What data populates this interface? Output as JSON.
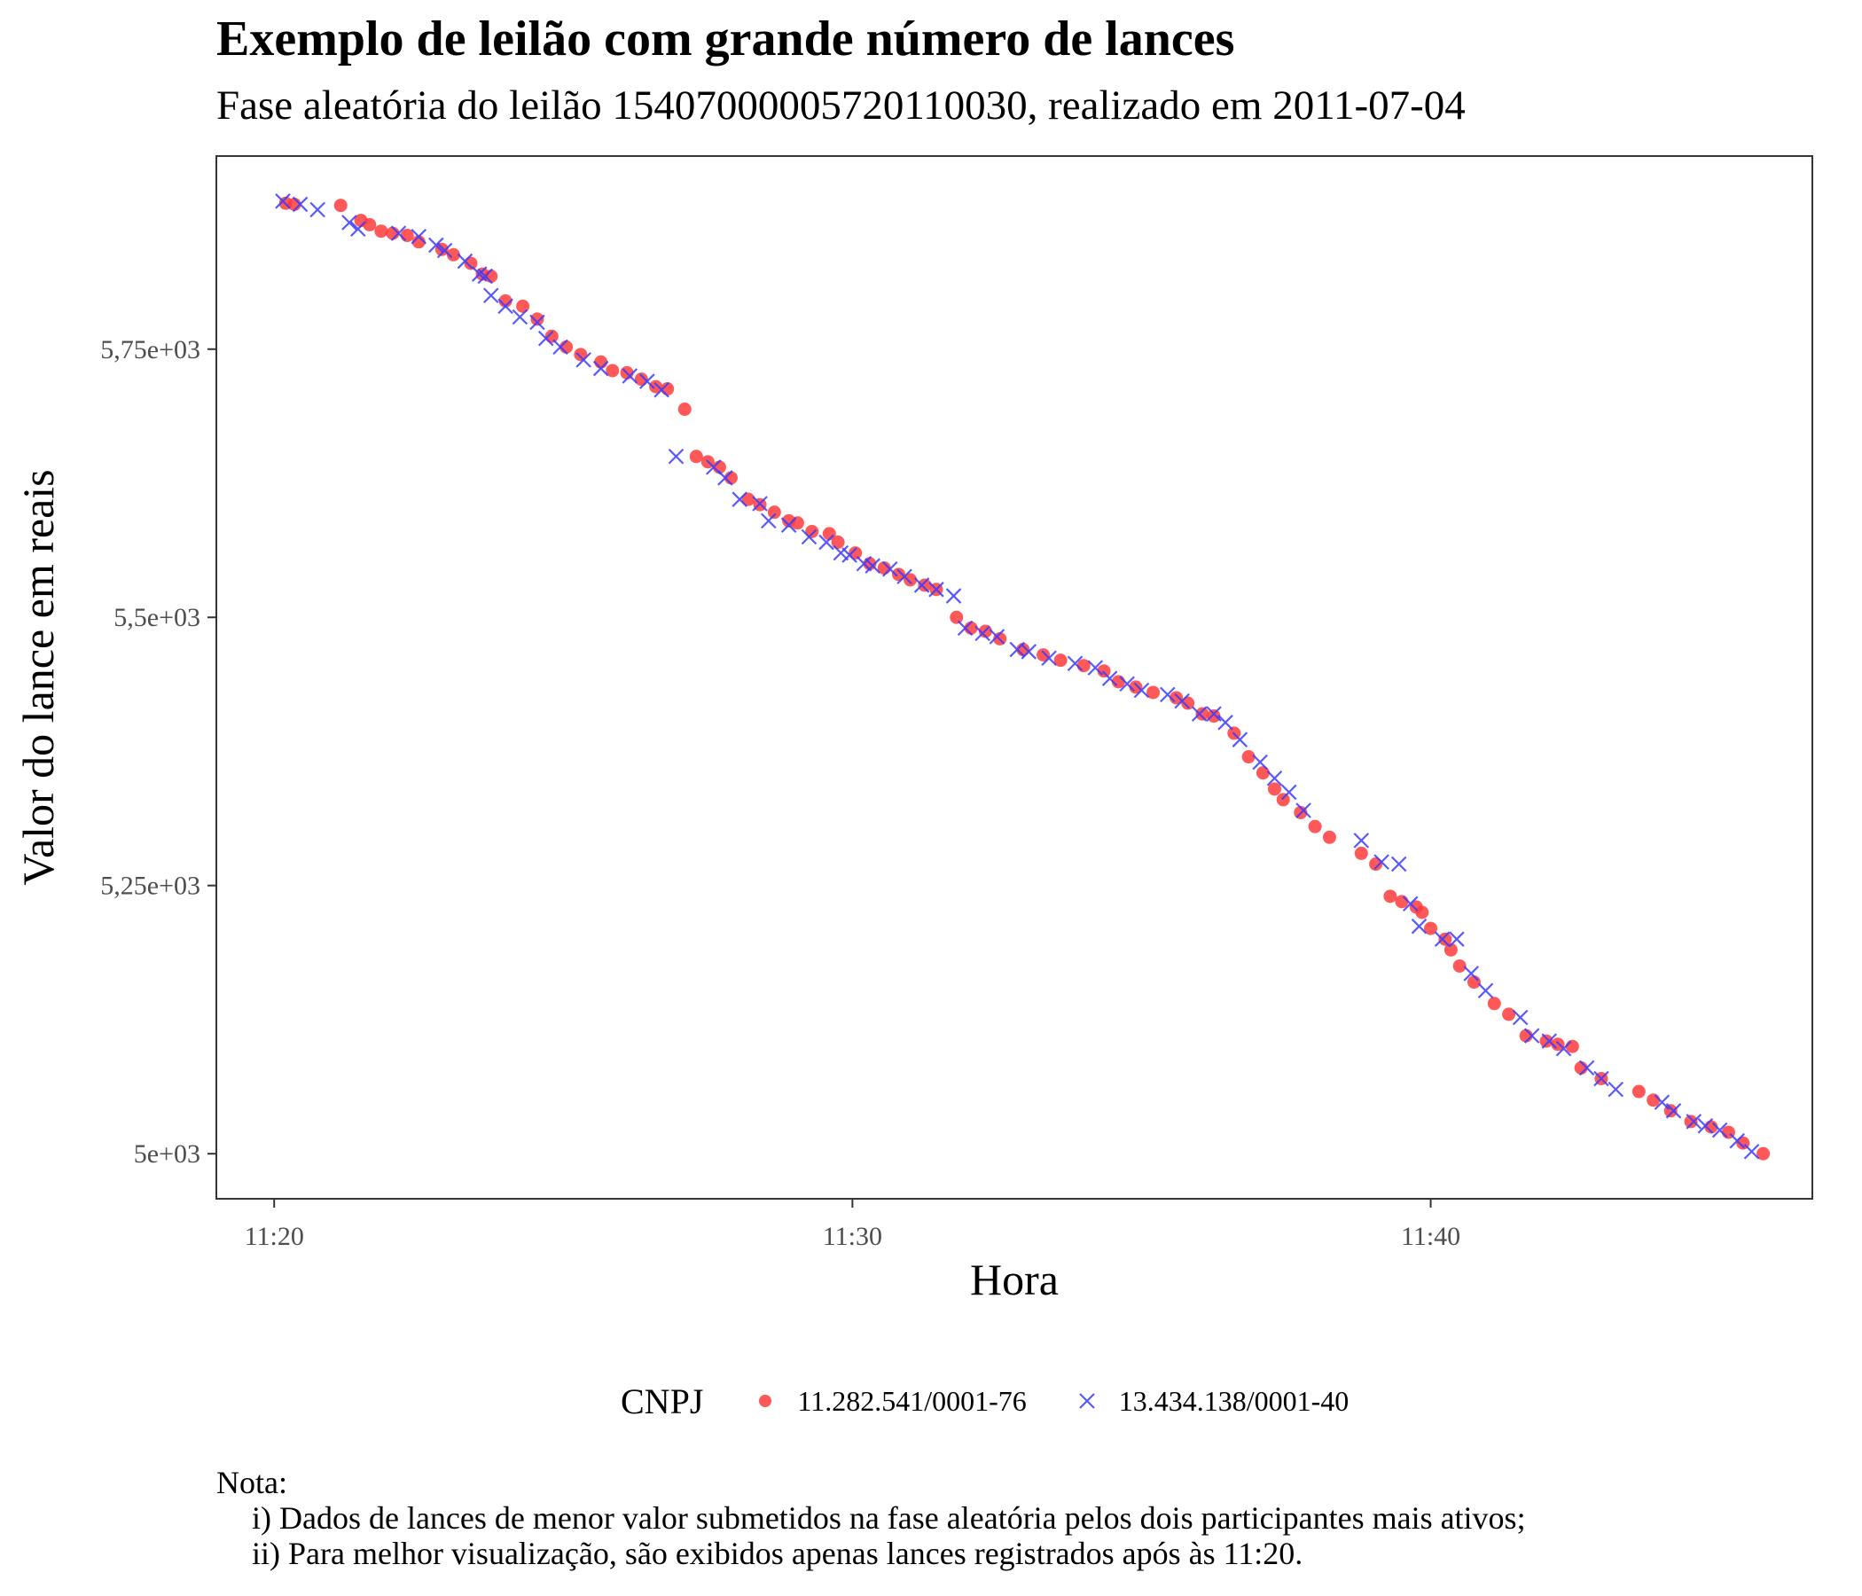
{
  "title": "Exemplo de leilão com grande número de lances",
  "subtitle": "Fase aleatória do leilão 15407000005720110030, realizado em 2011-07-04",
  "legend": {
    "title": "CNPJ",
    "items": [
      {
        "label": "11.282.541/0001-76",
        "shape": "circle",
        "color": "#ff3b3b"
      },
      {
        "label": "13.434.138/0001-40",
        "shape": "cross",
        "color": "#3b3bff"
      }
    ]
  },
  "note": {
    "heading": "Nota:",
    "lines": [
      "i) Dados de lances de menor valor submetidos na fase aleatória pelos dois participantes mais ativos;",
      "ii) Para melhor visualização, são exibidos apenas lances registrados após às 11:20."
    ]
  },
  "chart_data": {
    "type": "scatter",
    "xlabel": "Hora",
    "ylabel": "Valor do lance em reais",
    "x_unit": "minutes after 11:00",
    "xlim": [
      19.0,
      46.6
    ],
    "ylim": [
      4958,
      5930
    ],
    "xticks": [
      {
        "value": 20,
        "label": "11:20"
      },
      {
        "value": 30,
        "label": "11:30"
      },
      {
        "value": 40,
        "label": "11:40"
      }
    ],
    "yticks": [
      {
        "value": 5000,
        "label": "5e+03"
      },
      {
        "value": 5250,
        "label": "5,25e+03"
      },
      {
        "value": 5500,
        "label": "5,5e+03"
      },
      {
        "value": 5750,
        "label": "5,75e+03"
      }
    ],
    "grid": false,
    "legend_position": "bottom",
    "series": [
      {
        "name": "11.282.541/0001-76",
        "marker": "circle",
        "color": "#ff3b3b",
        "points": [
          [
            20.2,
            5886
          ],
          [
            20.35,
            5885
          ],
          [
            21.15,
            5884
          ],
          [
            21.5,
            5870
          ],
          [
            21.65,
            5866
          ],
          [
            21.85,
            5860
          ],
          [
            22.05,
            5858
          ],
          [
            22.3,
            5856
          ],
          [
            22.5,
            5850
          ],
          [
            22.9,
            5843
          ],
          [
            23.1,
            5838
          ],
          [
            23.4,
            5830
          ],
          [
            23.6,
            5820
          ],
          [
            23.75,
            5818
          ],
          [
            24.0,
            5795
          ],
          [
            24.3,
            5790
          ],
          [
            24.55,
            5778
          ],
          [
            24.8,
            5762
          ],
          [
            25.05,
            5752
          ],
          [
            25.3,
            5745
          ],
          [
            25.65,
            5738
          ],
          [
            25.85,
            5730
          ],
          [
            26.1,
            5728
          ],
          [
            26.35,
            5722
          ],
          [
            26.6,
            5715
          ],
          [
            26.8,
            5713
          ],
          [
            27.1,
            5694
          ],
          [
            27.3,
            5650
          ],
          [
            27.5,
            5645
          ],
          [
            27.7,
            5640
          ],
          [
            27.9,
            5630
          ],
          [
            28.2,
            5610
          ],
          [
            28.4,
            5605
          ],
          [
            28.65,
            5598
          ],
          [
            28.9,
            5590
          ],
          [
            29.05,
            5588
          ],
          [
            29.3,
            5580
          ],
          [
            29.6,
            5578
          ],
          [
            29.75,
            5570
          ],
          [
            30.05,
            5560
          ],
          [
            30.3,
            5550
          ],
          [
            30.55,
            5546
          ],
          [
            30.8,
            5540
          ],
          [
            31.0,
            5535
          ],
          [
            31.25,
            5530
          ],
          [
            31.45,
            5526
          ],
          [
            31.8,
            5500
          ],
          [
            32.05,
            5490
          ],
          [
            32.3,
            5487
          ],
          [
            32.55,
            5480
          ],
          [
            32.95,
            5470
          ],
          [
            33.3,
            5465
          ],
          [
            33.6,
            5460
          ],
          [
            34.0,
            5455
          ],
          [
            34.35,
            5450
          ],
          [
            34.6,
            5440
          ],
          [
            34.9,
            5435
          ],
          [
            35.2,
            5430
          ],
          [
            35.6,
            5425
          ],
          [
            35.8,
            5420
          ],
          [
            36.05,
            5410
          ],
          [
            36.25,
            5408
          ],
          [
            36.6,
            5392
          ],
          [
            36.85,
            5370
          ],
          [
            37.1,
            5355
          ],
          [
            37.3,
            5340
          ],
          [
            37.45,
            5330
          ],
          [
            37.75,
            5318
          ],
          [
            38.0,
            5305
          ],
          [
            38.25,
            5295
          ],
          [
            38.8,
            5280
          ],
          [
            39.05,
            5270
          ],
          [
            39.3,
            5240
          ],
          [
            39.5,
            5235
          ],
          [
            39.75,
            5230
          ],
          [
            39.85,
            5225
          ],
          [
            40.0,
            5210
          ],
          [
            40.25,
            5200
          ],
          [
            40.35,
            5190
          ],
          [
            40.5,
            5175
          ],
          [
            40.75,
            5160
          ],
          [
            41.1,
            5140
          ],
          [
            41.35,
            5130
          ],
          [
            41.65,
            5110
          ],
          [
            42.0,
            5105
          ],
          [
            42.2,
            5102
          ],
          [
            42.45,
            5100
          ],
          [
            42.6,
            5080
          ],
          [
            42.95,
            5070
          ],
          [
            43.6,
            5058
          ],
          [
            43.85,
            5050
          ],
          [
            44.15,
            5040
          ],
          [
            44.5,
            5030
          ],
          [
            44.85,
            5025
          ],
          [
            45.15,
            5020
          ],
          [
            45.4,
            5010
          ],
          [
            45.75,
            5000
          ]
        ]
      },
      {
        "name": "13.434.138/0001-40",
        "marker": "cross",
        "color": "#3b3bff",
        "points": [
          [
            20.15,
            5888
          ],
          [
            20.45,
            5885
          ],
          [
            20.75,
            5880
          ],
          [
            21.3,
            5868
          ],
          [
            21.45,
            5862
          ],
          [
            22.15,
            5858
          ],
          [
            22.5,
            5855
          ],
          [
            22.8,
            5847
          ],
          [
            22.95,
            5842
          ],
          [
            23.3,
            5832
          ],
          [
            23.55,
            5820
          ],
          [
            23.65,
            5818
          ],
          [
            23.75,
            5800
          ],
          [
            24.0,
            5790
          ],
          [
            24.25,
            5780
          ],
          [
            24.55,
            5775
          ],
          [
            24.7,
            5760
          ],
          [
            24.95,
            5752
          ],
          [
            25.35,
            5740
          ],
          [
            25.65,
            5732
          ],
          [
            26.15,
            5725
          ],
          [
            26.45,
            5720
          ],
          [
            26.7,
            5712
          ],
          [
            26.95,
            5650
          ],
          [
            27.6,
            5640
          ],
          [
            27.8,
            5630
          ],
          [
            28.05,
            5610
          ],
          [
            28.4,
            5606
          ],
          [
            28.55,
            5590
          ],
          [
            28.9,
            5586
          ],
          [
            29.25,
            5575
          ],
          [
            29.55,
            5570
          ],
          [
            29.8,
            5560
          ],
          [
            29.95,
            5558
          ],
          [
            30.2,
            5550
          ],
          [
            30.35,
            5548
          ],
          [
            30.65,
            5545
          ],
          [
            30.9,
            5538
          ],
          [
            31.2,
            5530
          ],
          [
            31.45,
            5526
          ],
          [
            31.75,
            5520
          ],
          [
            31.95,
            5490
          ],
          [
            32.25,
            5485
          ],
          [
            32.5,
            5482
          ],
          [
            32.85,
            5470
          ],
          [
            33.05,
            5468
          ],
          [
            33.4,
            5462
          ],
          [
            33.85,
            5457
          ],
          [
            34.2,
            5453
          ],
          [
            34.45,
            5443
          ],
          [
            34.75,
            5438
          ],
          [
            35.0,
            5432
          ],
          [
            35.45,
            5428
          ],
          [
            35.7,
            5422
          ],
          [
            36.0,
            5410
          ],
          [
            36.25,
            5410
          ],
          [
            36.45,
            5402
          ],
          [
            36.7,
            5386
          ],
          [
            37.05,
            5365
          ],
          [
            37.3,
            5350
          ],
          [
            37.55,
            5337
          ],
          [
            37.8,
            5320
          ],
          [
            38.8,
            5292
          ],
          [
            39.15,
            5272
          ],
          [
            39.45,
            5270
          ],
          [
            39.65,
            5233
          ],
          [
            39.8,
            5212
          ],
          [
            40.2,
            5200
          ],
          [
            40.45,
            5200
          ],
          [
            40.7,
            5168
          ],
          [
            40.95,
            5152
          ],
          [
            41.55,
            5127
          ],
          [
            41.75,
            5110
          ],
          [
            42.05,
            5105
          ],
          [
            42.3,
            5098
          ],
          [
            42.7,
            5080
          ],
          [
            42.95,
            5070
          ],
          [
            43.2,
            5060
          ],
          [
            44.0,
            5048
          ],
          [
            44.2,
            5040
          ],
          [
            44.55,
            5030
          ],
          [
            44.75,
            5026
          ],
          [
            45.0,
            5022
          ],
          [
            45.3,
            5012
          ],
          [
            45.55,
            5002
          ]
        ]
      }
    ]
  }
}
